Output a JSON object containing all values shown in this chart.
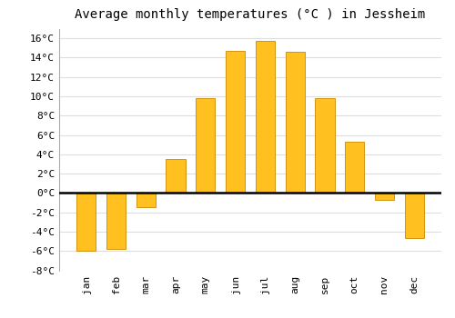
{
  "title": "Average monthly temperatures (°C ) in Jessheim",
  "months": [
    "Jan",
    "Feb",
    "Mar",
    "Apr",
    "May",
    "Jun",
    "Jul",
    "Aug",
    "Sep",
    "Oct",
    "Nov",
    "Dec"
  ],
  "values": [
    -6.0,
    -5.8,
    -1.5,
    3.5,
    9.8,
    14.7,
    15.7,
    14.6,
    9.8,
    5.3,
    -0.7,
    -4.7
  ],
  "bar_color": "#FFC020",
  "bar_edge_color": "#CC8800",
  "background_color": "#FFFFFF",
  "plot_bg_color": "#FFFFFF",
  "grid_color": "#DDDDDD",
  "ylim": [
    -8,
    17
  ],
  "yticks": [
    -8,
    -6,
    -4,
    -2,
    0,
    2,
    4,
    6,
    8,
    10,
    12,
    14,
    16
  ],
  "title_fontsize": 10,
  "tick_fontsize": 8,
  "font_family": "monospace"
}
